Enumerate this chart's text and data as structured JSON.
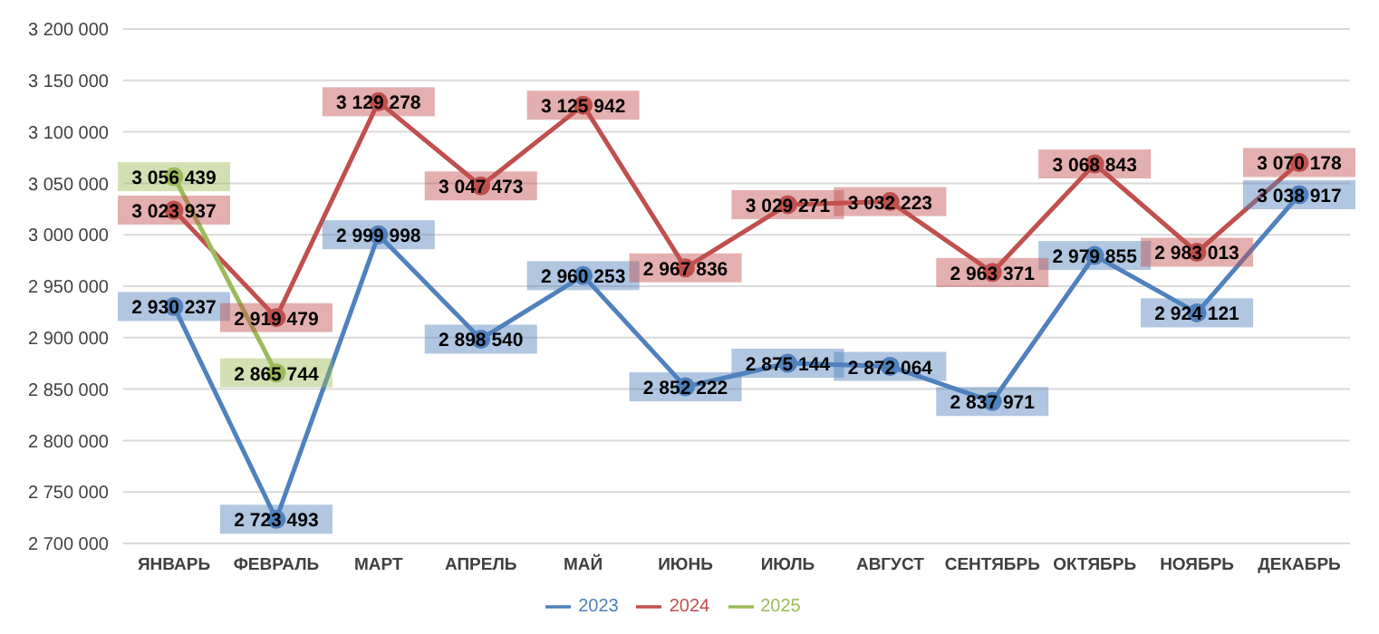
{
  "chart_data": {
    "type": "line",
    "categories": [
      "ЯНВАРЬ",
      "ФЕВРАЛЬ",
      "МАРТ",
      "АПРЕЛЬ",
      "МАЙ",
      "ИЮНЬ",
      "ИЮЛЬ",
      "АВГУСТ",
      "СЕНТЯБРЬ",
      "ОКТЯБРЬ",
      "НОЯБРЬ",
      "ДЕКАБРЬ"
    ],
    "series": [
      {
        "name": "2023",
        "color": "#4f81bd",
        "values": [
          2930237,
          2723493,
          2999998,
          2898540,
          2960253,
          2852222,
          2875144,
          2872064,
          2837971,
          2979855,
          2924121,
          3038917
        ],
        "value_labels": [
          "2 930 237",
          "2 723 493",
          "2 999 998",
          "2 898 540",
          "2 960 253",
          "2 852 222",
          "2 875 144",
          "2 872 064",
          "2 837 971",
          "2 979 855",
          "2 924 121",
          "3 038 917"
        ]
      },
      {
        "name": "2024",
        "color": "#c0504d",
        "values": [
          3023937,
          2919479,
          3129278,
          3047473,
          3125942,
          2967836,
          3029271,
          3032223,
          2963371,
          3068843,
          2983013,
          3070178
        ],
        "value_labels": [
          "3 023 937",
          "2 919 479",
          "3 129 278",
          "3 047 473",
          "3 125 942",
          "2 967 836",
          "3 029 271",
          "3 032 223",
          "2 963 371",
          "3 068 843",
          "2 983 013",
          "3 070 178"
        ]
      },
      {
        "name": "2025",
        "color": "#9bbb59",
        "values": [
          3056439,
          2865744,
          null,
          null,
          null,
          null,
          null,
          null,
          null,
          null,
          null,
          null
        ],
        "value_labels": [
          "3 056 439",
          "2 865 744",
          null,
          null,
          null,
          null,
          null,
          null,
          null,
          null,
          null,
          null
        ]
      }
    ],
    "ylim": [
      2700000,
      3200000
    ],
    "yticks": [
      {
        "value": 2700000,
        "label": "2 700 000"
      },
      {
        "value": 2750000,
        "label": "2 750 000"
      },
      {
        "value": 2800000,
        "label": "2 800 000"
      },
      {
        "value": 2850000,
        "label": "2 850 000"
      },
      {
        "value": 2900000,
        "label": "2 900 000"
      },
      {
        "value": 2950000,
        "label": "2 950 000"
      },
      {
        "value": 3000000,
        "label": "3 000 000"
      },
      {
        "value": 3050000,
        "label": "3 050 000"
      },
      {
        "value": 3100000,
        "label": "3 100 000"
      },
      {
        "value": 3150000,
        "label": "3 150 000"
      },
      {
        "value": 3200000,
        "label": "3 200 000"
      }
    ],
    "grid": "y",
    "legend": "bottom",
    "marker": "circle",
    "line_style": "solid"
  }
}
